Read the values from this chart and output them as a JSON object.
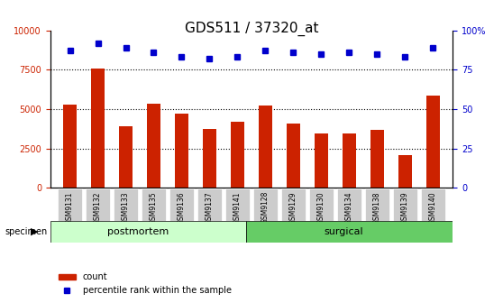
{
  "title": "GDS511 / 37320_at",
  "categories": [
    "GSM9131",
    "GSM9132",
    "GSM9133",
    "GSM9135",
    "GSM9136",
    "GSM9137",
    "GSM9141",
    "GSM9128",
    "GSM9129",
    "GSM9130",
    "GSM9134",
    "GSM9138",
    "GSM9139",
    "GSM9140"
  ],
  "counts": [
    5300,
    7600,
    3900,
    5350,
    4700,
    3750,
    4200,
    5200,
    4100,
    3450,
    3450,
    3700,
    2100,
    5850
  ],
  "percentiles": [
    87,
    92,
    89,
    86,
    83,
    82,
    83,
    87,
    86,
    85,
    86,
    85,
    83,
    89
  ],
  "bar_color": "#cc2200",
  "dot_color": "#0000cc",
  "ylim_left": [
    0,
    10000
  ],
  "ylim_right": [
    0,
    100
  ],
  "yticks_left": [
    0,
    2500,
    5000,
    7500,
    10000
  ],
  "yticks_right": [
    0,
    25,
    50,
    75,
    100
  ],
  "postmortem_count": 7,
  "surgical_count": 7,
  "postmortem_label": "postmortem",
  "surgical_label": "surgical",
  "specimen_label": "specimen",
  "legend_count_label": "count",
  "legend_pct_label": "percentile rank within the sample",
  "background_color": "#ffffff",
  "tick_bg_color": "#cccccc",
  "postmortem_bg": "#ccffcc",
  "surgical_bg": "#66cc66",
  "title_fontsize": 11,
  "tick_fontsize": 7,
  "label_fontsize": 8
}
